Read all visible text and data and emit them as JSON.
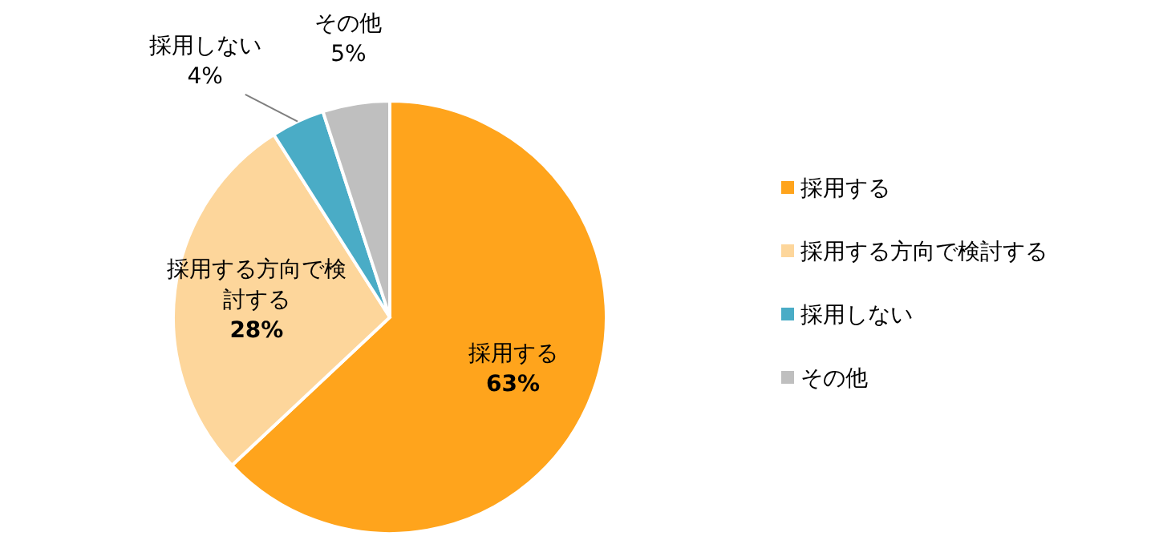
{
  "chart_data": {
    "type": "pie",
    "categories": [
      "採用する",
      "採用する方向で検討する",
      "採用しない",
      "その他"
    ],
    "values": [
      63,
      28,
      4,
      5
    ],
    "colors": [
      "#ffa41c",
      "#fdd69b",
      "#4aacc6",
      "#bfbfbf"
    ],
    "value_labels": [
      "63%",
      "28%",
      "4%",
      "5%"
    ],
    "legend": "right"
  }
}
